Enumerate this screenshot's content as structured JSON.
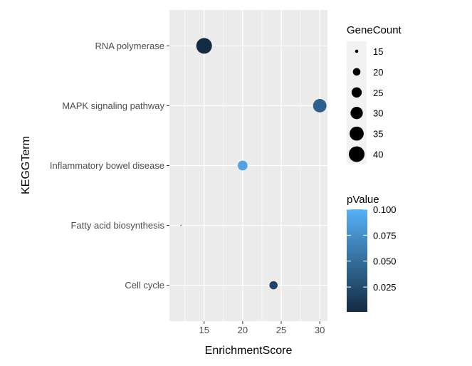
{
  "chart_data": {
    "type": "scatter",
    "title": "",
    "xlabel": "EnrichmentScore",
    "ylabel": "KEGGTerm",
    "xlim": [
      10.5,
      31
    ],
    "x_ticks": [
      15,
      20,
      25,
      30
    ],
    "categories": [
      "RNA polymerase",
      "MAPK signaling pathway",
      "Inflammatory bowel disease",
      "Fatty acid biosynthesis",
      "Cell cycle"
    ],
    "points": [
      {
        "term": "RNA polymerase",
        "x": 15,
        "gene_count": 40,
        "p_value": 0.001
      },
      {
        "term": "MAPK signaling pathway",
        "x": 30,
        "gene_count": 33,
        "p_value": 0.04
      },
      {
        "term": "Inflammatory bowel disease",
        "x": 20,
        "gene_count": 24,
        "p_value": 0.09
      },
      {
        "term": "Fatty acid biosynthesis",
        "x": 12,
        "gene_count": 14,
        "p_value": 0.03
      },
      {
        "term": "Cell cycle",
        "x": 24,
        "gene_count": 21,
        "p_value": 0.02
      }
    ],
    "size_legend": {
      "title": "GeneCount",
      "values": [
        15,
        20,
        25,
        30,
        35,
        40
      ]
    },
    "color_legend": {
      "title": "pValue",
      "ticks": [
        "0.100",
        "0.075",
        "0.050",
        "0.025"
      ],
      "range": [
        0.001,
        0.1
      ],
      "low_color": "#132B43",
      "high_color": "#56B1F7"
    },
    "grid": true,
    "panel_background": "#EBEBEB",
    "legend_position": "right"
  }
}
